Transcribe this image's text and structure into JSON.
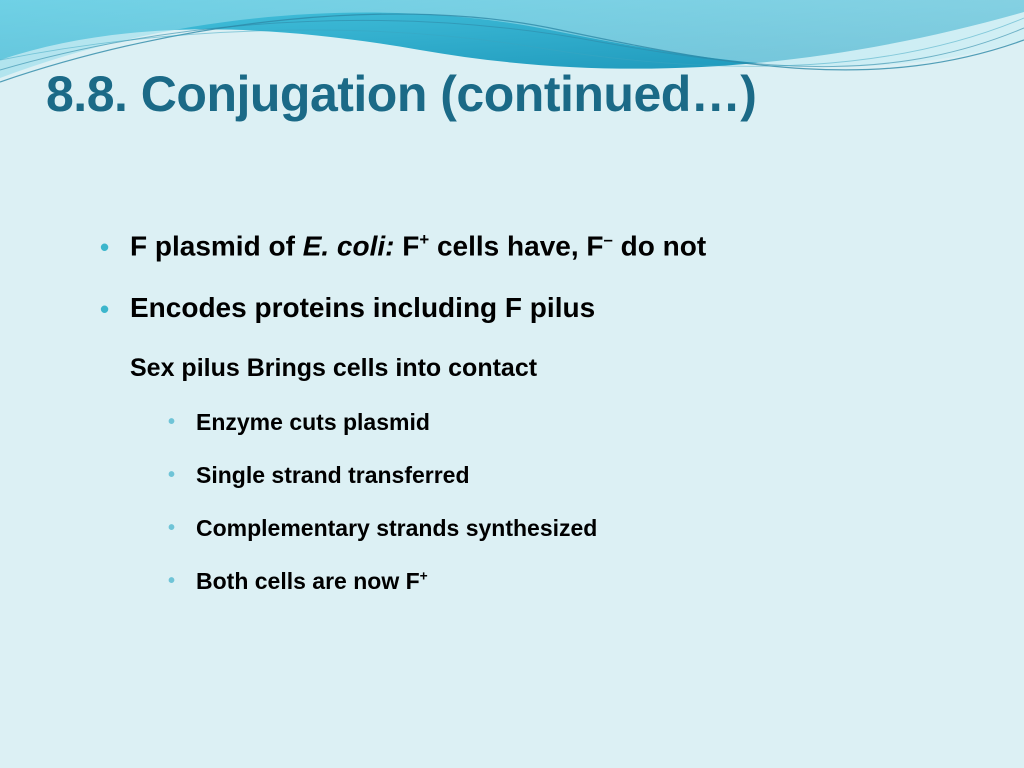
{
  "colors": {
    "background": "#dcf0f4",
    "title": "#1b6a87",
    "bullet_main": "#3cb6cc",
    "bullet_sub": "#6fc4d7",
    "text": "#000000",
    "wave_dark": "#1a94b8",
    "wave_mid": "#55c2d9",
    "wave_light": "#9edeea",
    "wave_line": "#2e8aa8"
  },
  "title": "8.8. Conjugation (continued…)",
  "bullets_level1": [
    {
      "pre": "F plasmid of ",
      "italic": "E. coli: ",
      "post_a": "F",
      "sup_a": "+",
      "mid": " cells have, F",
      "sup_b": "–",
      "tail": " do not"
    },
    {
      "text": "Encodes proteins including F pilus"
    }
  ],
  "bullet_level2": "Sex pilus Brings cells into contact",
  "bullets_level3": [
    "Enzyme cuts plasmid",
    "Single strand transferred",
    "Complementary strands synthesized"
  ],
  "bullet_level3_last": {
    "pre": "Both cells are now F",
    "sup": "+"
  }
}
